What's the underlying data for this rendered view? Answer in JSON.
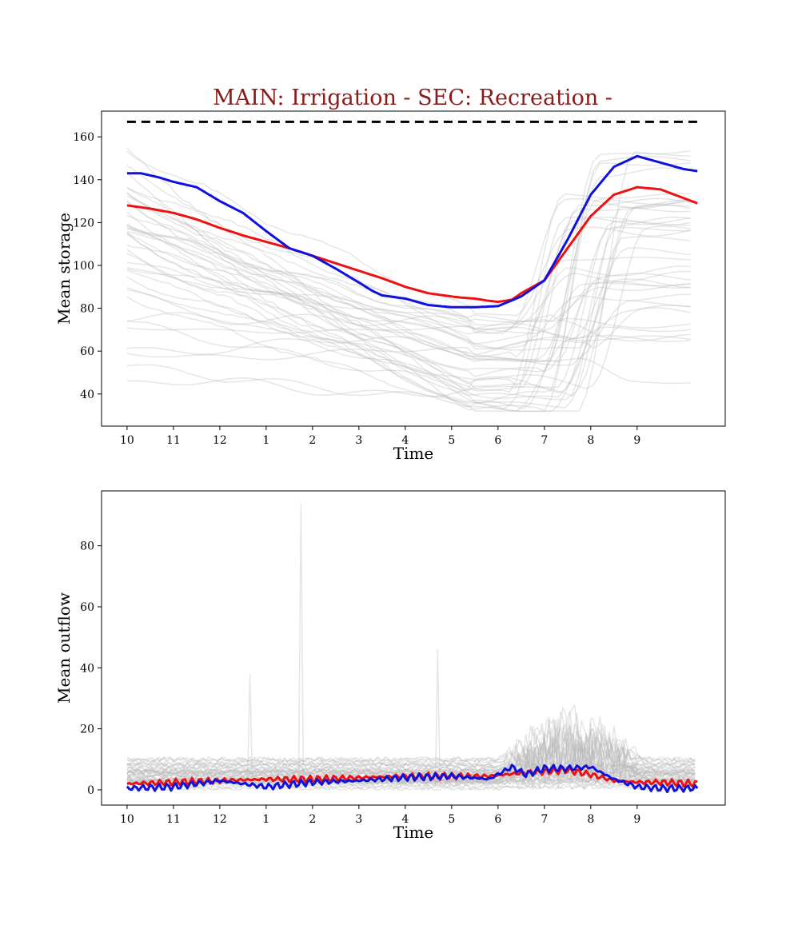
{
  "figure": {
    "title": "MAIN: Irrigation - SEC: Recreation -",
    "title_color": "#8b1a1a",
    "background": "#ffffff"
  },
  "chart_data": [
    {
      "type": "line",
      "xlabel": "Time",
      "ylabel": "Mean storage",
      "x_tick_labels": [
        "10",
        "11",
        "12",
        "1",
        "2",
        "3",
        "4",
        "5",
        "6",
        "7",
        "8",
        "9"
      ],
      "x_tick_positions": [
        0,
        1,
        2,
        3,
        4,
        5,
        6,
        7,
        8,
        9,
        10,
        11
      ],
      "xlim": [
        -0.55,
        12.9
      ],
      "ylim": [
        25,
        172
      ],
      "y_ticks": [
        40,
        60,
        80,
        100,
        120,
        140,
        160
      ],
      "grid": false,
      "reference_line": {
        "y": 167,
        "style": "dashed",
        "color": "#000000"
      },
      "series": [
        {
          "color": "#ee1111",
          "x": [
            0,
            0.5,
            1,
            1.5,
            2,
            2.5,
            3,
            3.5,
            4,
            4.5,
            5,
            5.5,
            6,
            6.5,
            7,
            7.2,
            7.5,
            7.8,
            8,
            8.3,
            8.5,
            9,
            9.5,
            10,
            10.5,
            11,
            11.5,
            12.3
          ],
          "values": [
            128,
            126.5,
            124.5,
            121.5,
            117.5,
            114,
            111,
            108,
            104.5,
            101,
            97.5,
            94,
            90,
            87,
            85.5,
            85,
            84.5,
            83.5,
            83,
            84,
            87,
            93,
            108,
            123,
            133,
            136.5,
            135.5,
            129
          ]
        },
        {
          "color": "#1111dd",
          "x": [
            0,
            0.3,
            0.7,
            1,
            1.5,
            2,
            2.5,
            3,
            3.5,
            4,
            4.5,
            5,
            5.3,
            5.5,
            6,
            6.5,
            7,
            7.5,
            8,
            8.5,
            9,
            9.5,
            10,
            10.5,
            11,
            11.5,
            12,
            12.3
          ],
          "values": [
            143,
            143,
            141,
            139,
            136.5,
            130,
            124.5,
            116,
            108,
            104.5,
            98.5,
            92,
            88,
            86,
            84.5,
            81.5,
            80.5,
            80.5,
            81,
            85.5,
            93,
            112,
            133,
            146,
            151,
            148,
            145,
            144
          ]
        }
      ],
      "background_series_count": 40
    },
    {
      "type": "line",
      "xlabel": "Time",
      "ylabel": "Mean outflow",
      "x_tick_labels": [
        "10",
        "11",
        "12",
        "1",
        "2",
        "3",
        "4",
        "5",
        "6",
        "7",
        "8",
        "9"
      ],
      "x_tick_positions": [
        0,
        1,
        2,
        3,
        4,
        5,
        6,
        7,
        8,
        9,
        10,
        11
      ],
      "xlim": [
        -0.55,
        12.9
      ],
      "ylim": [
        -5,
        98
      ],
      "y_ticks": [
        0,
        20,
        40,
        60,
        80
      ],
      "grid": false,
      "series": [
        {
          "color": "#ee1111",
          "x": [
            0,
            1,
            2,
            3,
            4,
            5,
            6,
            7,
            7.8,
            8.5,
            9,
            9.5,
            10,
            10.5,
            11,
            11.5,
            12.3
          ],
          "values": [
            2,
            2.5,
            3,
            3.5,
            3.5,
            4,
            4.5,
            4.5,
            4.5,
            5.5,
            6,
            6.5,
            5,
            3,
            2.5,
            2.5,
            2
          ]
        },
        {
          "color": "#1111dd",
          "x": [
            0,
            1,
            2,
            3,
            4,
            5,
            6,
            7,
            7.8,
            8.3,
            8.6,
            9,
            9.5,
            10,
            10.5,
            11,
            11.5,
            12.3
          ],
          "values": [
            0.5,
            1,
            3,
            1,
            2.5,
            3,
            4,
            4.5,
            3.5,
            7.5,
            5,
            7,
            7,
            7.5,
            3.5,
            1,
            0.5,
            0.5
          ]
        }
      ],
      "background_series_count": 40
    }
  ]
}
